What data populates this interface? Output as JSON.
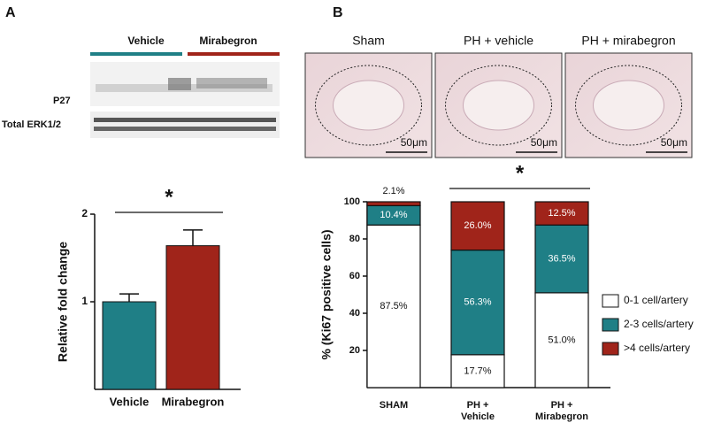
{
  "panel_labels": [
    "A",
    "B"
  ],
  "blot": {
    "groups": [
      "Vehicle",
      "Mirabegron"
    ],
    "rows": [
      "P27",
      "Total ERK1/2"
    ]
  },
  "micrographs": [
    {
      "title": "Sham",
      "scale": "50μm"
    },
    {
      "title": "PH + vehicle",
      "scale": "50μm"
    },
    {
      "title": "PH + mirabegron",
      "scale": "50μm"
    }
  ],
  "chart_data": [
    {
      "type": "bar",
      "ylabel": "Relative fold change",
      "annotation": "*",
      "categories": [
        "Vehicle",
        "Mirabegron"
      ],
      "values": [
        1.0,
        1.64
      ],
      "errors": [
        0.09,
        0.18
      ],
      "colors": [
        "#1f7f86",
        "#a0241a"
      ],
      "ylim": [
        0,
        2
      ],
      "yticks": [
        1,
        2
      ]
    },
    {
      "type": "stacked_bar",
      "ylabel": "% (Ki67 positive cells)",
      "annotation": "*",
      "categories": [
        "SHAM",
        "PH + Vehicle",
        "PH + Mirabegron"
      ],
      "series": [
        {
          "name": "0-1 cell/artery",
          "color": "#ffffff",
          "values": [
            87.5,
            17.7,
            51.0
          ],
          "value_labels": [
            "87.5%",
            "17.7%",
            "51.0%"
          ]
        },
        {
          "name": "2-3 cells/artery",
          "color": "#1f7f86",
          "values": [
            10.4,
            56.3,
            36.5
          ],
          "value_labels": [
            "10.4%",
            "56.3%",
            "36.5%"
          ]
        },
        {
          "name": ">4 cells/artery",
          "color": "#a0241a",
          "values": [
            2.1,
            26.0,
            12.5
          ],
          "value_labels": [
            "2.1%",
            "26.0%",
            "12.5%"
          ]
        }
      ],
      "ylim": [
        0,
        100
      ],
      "yticks": [
        20,
        40,
        60,
        80,
        100
      ],
      "legend": "right"
    }
  ]
}
